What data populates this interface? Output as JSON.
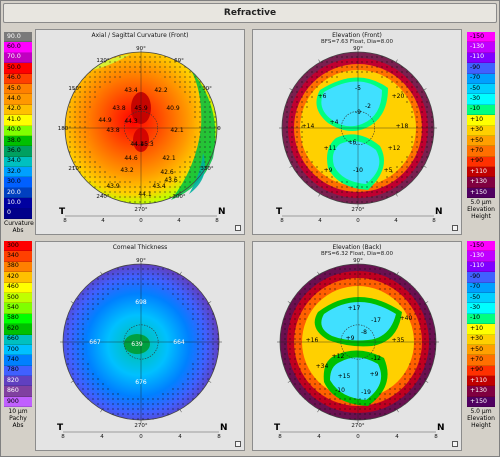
{
  "window": {
    "title": "Refractive"
  },
  "panels": {
    "axial": {
      "title": "Axial / Sagittal Curvature (Front)",
      "top_angle": "90°",
      "bottom_angle": "270°",
      "angle_labels": [
        "120°",
        "60°",
        "150°",
        "30°",
        "180",
        "0",
        "210°",
        "330°",
        "240°",
        "300°"
      ],
      "values": [
        "43.4",
        "42.2",
        "43.8",
        "45.9",
        "40.9",
        "44.3",
        "43.8",
        "42.1",
        "44.1",
        "45.3",
        "44.6",
        "42.1",
        "43.2",
        "42.6",
        "43.9",
        "43.4",
        "44.1",
        "43.6",
        "44.9"
      ],
      "left_letter": "T",
      "right_letter": "N",
      "scale": [
        "8",
        "4",
        "0",
        "4",
        "8"
      ]
    },
    "elev_front": {
      "title": "Elevation (Front)",
      "subtitle": "BFS=7.63 Float, Dia=8.00",
      "top_angle": "90°",
      "bottom_angle": "270°",
      "values": [
        "+6",
        "-5",
        "+20",
        "+14",
        "+4",
        "-9",
        "+18",
        "-2",
        "+11",
        "+6",
        "+12",
        "+9",
        "-10",
        "+5"
      ],
      "left_letter": "T",
      "right_letter": "N",
      "scale": [
        "8",
        "4",
        "0",
        "4",
        "8"
      ]
    },
    "pachy": {
      "title": "Corneal Thickness",
      "top_angle": "90°",
      "bottom_angle": "270°",
      "values": [
        "698",
        "667",
        "639",
        "664",
        "676"
      ],
      "left_letter": "T",
      "right_letter": "N",
      "scale": [
        "8",
        "4",
        "0",
        "4",
        "8"
      ]
    },
    "elev_back": {
      "title": "Elevation (Back)",
      "subtitle": "BFS=6.32 Float, Dia=8.00",
      "top_angle": "90°",
      "bottom_angle": "270°",
      "values": [
        "+17",
        "-17",
        "+40",
        "+16",
        "+9",
        "-8",
        "+35",
        "-12",
        "+12",
        "+34",
        "+15",
        "+9",
        "-19",
        "-10"
      ],
      "left_letter": "T",
      "right_letter": "N",
      "scale": [
        "8",
        "4",
        "0",
        "4",
        "8"
      ]
    }
  },
  "legends": {
    "curvature": {
      "values": [
        "90.0",
        "60.0",
        "70.0",
        "50.0",
        "46.0",
        "45.0",
        "44.0",
        "42.0",
        "41.0",
        "40.0",
        "38.0",
        "36.0",
        "34.0",
        "32.0",
        "30.0",
        "20.0",
        "10.0",
        "0"
      ],
      "colors": [
        "#7a7a7a",
        "#ff00ff",
        "#c000c0",
        "#ff0000",
        "#ff4000",
        "#ff8000",
        "#ff9800",
        "#ffc000",
        "#ffff00",
        "#80ff00",
        "#00c000",
        "#00a060",
        "#00c0c0",
        "#00a0ff",
        "#0060ff",
        "#0040c0",
        "#0000a0",
        "#00008a"
      ],
      "unit": "Curvature",
      "sub": "Abs"
    },
    "elev_front": {
      "values": [
        "-150",
        "-130",
        "-110",
        "-90",
        "-70",
        "-50",
        "-30",
        "-10",
        "+10",
        "+30",
        "+50",
        "+70",
        "+90",
        "+110",
        "+130",
        "+150"
      ],
      "colors": [
        "#ff00ff",
        "#c000ff",
        "#8000ff",
        "#4060ff",
        "#00a0ff",
        "#00d0ff",
        "#00ffff",
        "#00ff80",
        "#ffff00",
        "#ffd000",
        "#ffa000",
        "#ff7000",
        "#ff3000",
        "#c00000",
        "#800040",
        "#500060"
      ],
      "unit": "5.0 μm",
      "sub": "Elevation",
      "sub2": "Height"
    },
    "pachy": {
      "values": [
        "300",
        "340",
        "380",
        "420",
        "460",
        "500",
        "540",
        "580",
        "620",
        "660",
        "700",
        "740",
        "780",
        "820",
        "860",
        "900"
      ],
      "colors": [
        "#ff0000",
        "#ff4000",
        "#ff8000",
        "#ffc000",
        "#ffff00",
        "#c0ff00",
        "#80ff00",
        "#00ff00",
        "#00c000",
        "#00c0c0",
        "#00c0ff",
        "#0080ff",
        "#4060ff",
        "#6040c0",
        "#8040a0",
        "#c060ff"
      ],
      "unit": "10 μm",
      "sub": "Pachy",
      "sub2": "Abs"
    },
    "elev_back": {
      "values": [
        "-150",
        "-130",
        "-110",
        "-90",
        "-70",
        "-50",
        "-30",
        "-10",
        "+10",
        "+30",
        "+50",
        "+70",
        "+90",
        "+110",
        "+130",
        "+150"
      ],
      "colors": [
        "#ff00ff",
        "#c000ff",
        "#8000ff",
        "#4060ff",
        "#00a0ff",
        "#00d0ff",
        "#00ffff",
        "#00ff80",
        "#ffff00",
        "#ffd000",
        "#ffa000",
        "#ff7000",
        "#ff3000",
        "#c00000",
        "#800040",
        "#500060"
      ],
      "unit": "5.0 μm",
      "sub": "Elevation",
      "sub2": "Height"
    }
  }
}
